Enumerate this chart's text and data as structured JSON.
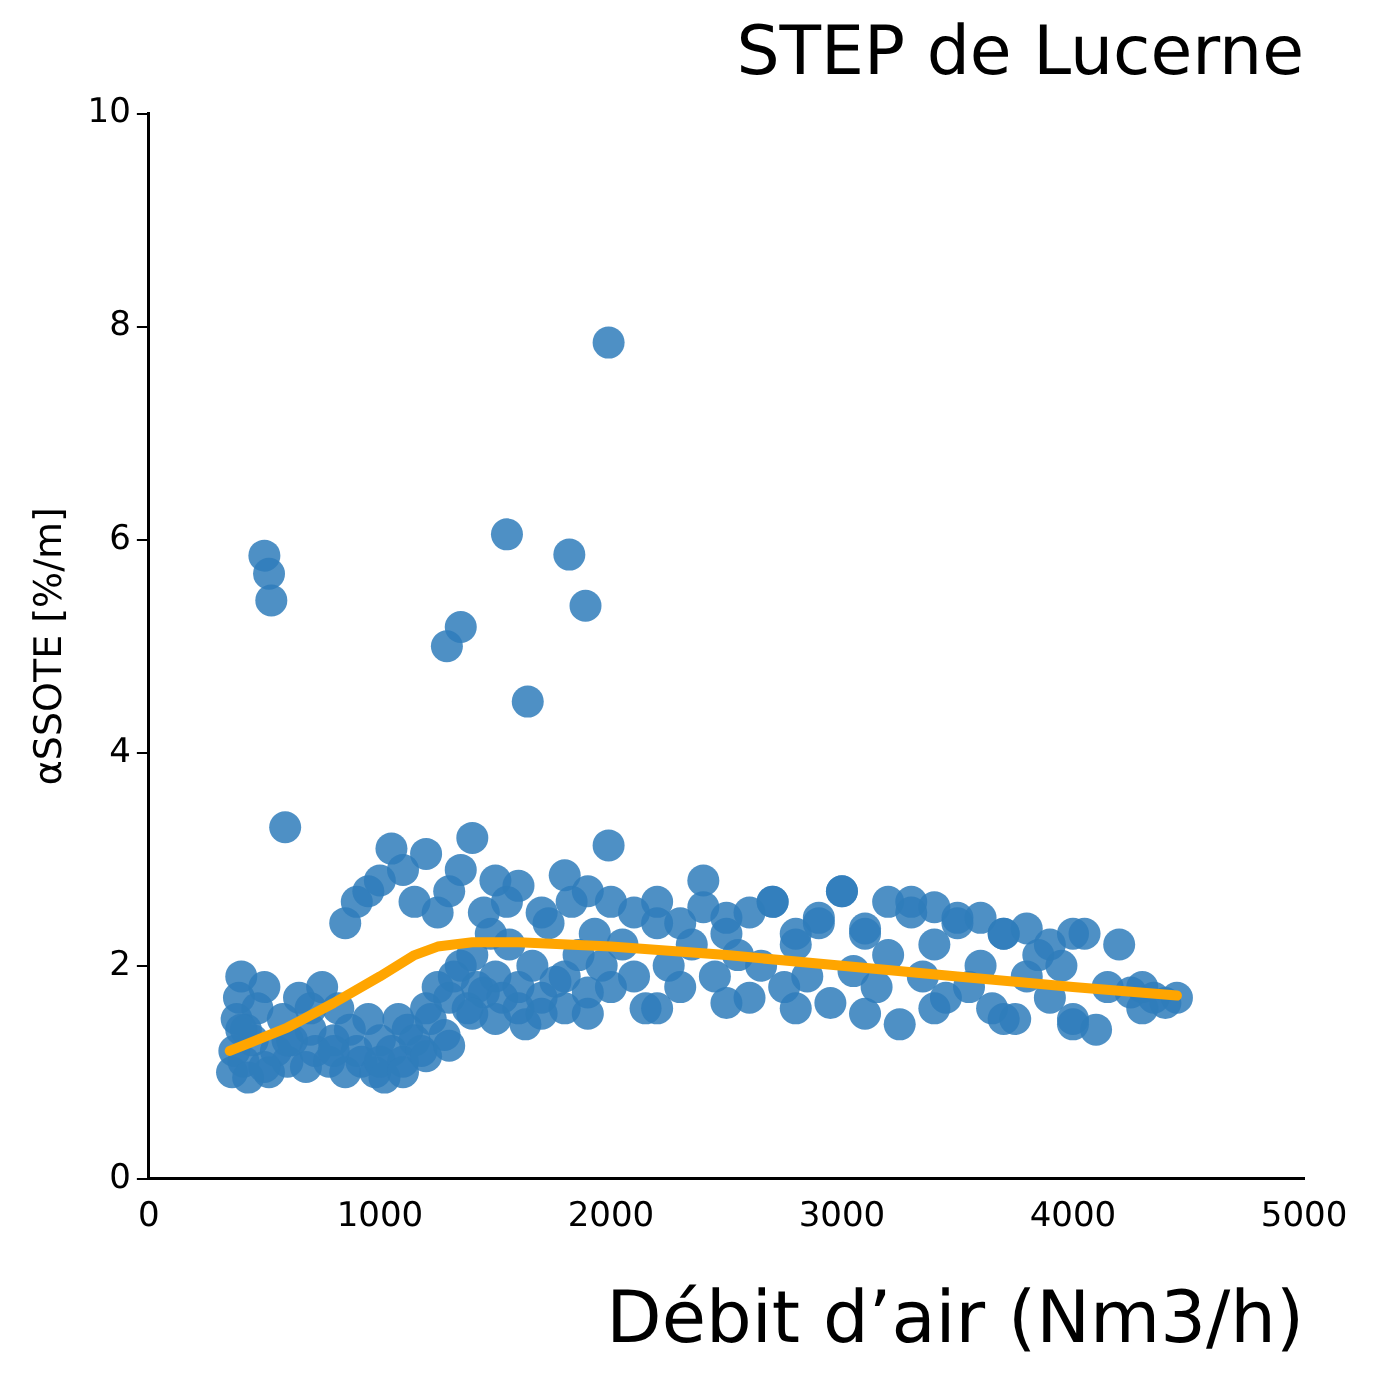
{
  "chart_data": {
    "type": "scatter",
    "title": "STEP de Lucerne",
    "xlabel": "Débit d’air (Nm3/h)",
    "ylabel": "αSSOTE [%/m]",
    "xlim": [
      0,
      5000
    ],
    "xticks": [
      0,
      1000,
      2000,
      3000,
      4000,
      5000
    ],
    "ylim": [
      0,
      10
    ],
    "yticks": [
      0,
      2,
      4,
      6,
      8,
      10
    ],
    "grid": false,
    "legend": false,
    "marker": "circle",
    "series": [
      {
        "color": "#2f7dbb",
        "x": [
          500,
          520,
          530,
          590,
          1290,
          1350,
          1550,
          1640,
          1820,
          1890,
          1990,
          1990,
          360,
          370,
          380,
          390,
          400,
          410,
          420,
          430,
          450,
          470,
          500,
          520,
          550,
          580,
          600,
          620,
          650,
          680,
          700,
          720,
          750,
          780,
          800,
          820,
          850,
          870,
          900,
          920,
          950,
          980,
          1000,
          1020,
          1050,
          1080,
          1100,
          1120,
          1150,
          1180,
          1200,
          1220,
          1250,
          1280,
          1300,
          1320,
          1350,
          1380,
          1400,
          1420,
          1450,
          1480,
          1500,
          1530,
          1560,
          1600,
          1630,
          1660,
          1700,
          1730,
          1760,
          1800,
          1830,
          1860,
          1900,
          1930,
          1960,
          2000,
          2050,
          2100,
          2150,
          2200,
          2250,
          2300,
          2350,
          2400,
          2450,
          2500,
          2550,
          2600,
          2650,
          2700,
          2750,
          2800,
          2850,
          2900,
          2950,
          3000,
          3050,
          3100,
          3150,
          3200,
          3250,
          3300,
          3350,
          3400,
          3450,
          3500,
          3550,
          3600,
          3650,
          3700,
          3750,
          3800,
          3850,
          3900,
          3950,
          4000,
          4050,
          4100,
          4150,
          4200,
          4250,
          4300,
          4350,
          4400,
          4450,
          850,
          900,
          950,
          1000,
          1050,
          1100,
          1150,
          1200,
          1250,
          1300,
          1350,
          1400,
          1450,
          1500,
          1550,
          1600,
          1700,
          1800,
          1900,
          2000,
          2100,
          2200,
          2300,
          2400,
          2500,
          2600,
          2700,
          2800,
          2900,
          3000,
          3100,
          3200,
          3300,
          3400,
          3500,
          3600,
          3700,
          3800,
          3900,
          4000,
          400,
          500,
          600,
          700,
          800,
          1000,
          1100,
          1200,
          1300,
          1400,
          1500,
          1600,
          1700,
          1800,
          1900,
          2200,
          2500,
          2800,
          3100,
          3400,
          3700,
          4000,
          4300
        ],
        "values": [
          5.85,
          5.68,
          5.43,
          3.3,
          5.0,
          5.18,
          6.05,
          4.48,
          5.86,
          5.38,
          7.85,
          3.13,
          1.0,
          1.2,
          1.5,
          1.7,
          1.9,
          1.1,
          1.4,
          0.95,
          1.3,
          1.6,
          1.8,
          1.0,
          1.2,
          1.5,
          1.1,
          1.3,
          1.7,
          1.05,
          1.4,
          1.2,
          1.8,
          1.1,
          1.3,
          1.6,
          1.0,
          1.4,
          1.2,
          1.1,
          1.5,
          1.0,
          1.3,
          0.95,
          1.2,
          1.5,
          1.1,
          1.4,
          1.3,
          1.2,
          1.6,
          1.5,
          1.8,
          1.35,
          1.7,
          1.9,
          2.0,
          1.6,
          2.1,
          1.8,
          1.75,
          2.3,
          1.9,
          1.7,
          2.2,
          1.8,
          1.45,
          2.0,
          1.7,
          2.4,
          1.85,
          1.9,
          2.6,
          2.1,
          1.75,
          2.3,
          2.0,
          1.8,
          2.2,
          1.9,
          1.6,
          2.4,
          2.0,
          1.8,
          2.2,
          2.8,
          1.9,
          2.3,
          2.1,
          1.7,
          2.0,
          2.6,
          1.8,
          2.2,
          1.9,
          2.4,
          1.65,
          2.7,
          1.95,
          2.3,
          1.8,
          2.1,
          1.45,
          2.6,
          1.9,
          2.2,
          1.7,
          2.45,
          1.8,
          2.0,
          1.6,
          2.3,
          1.5,
          1.9,
          2.1,
          1.7,
          2.0,
          1.5,
          2.3,
          1.4,
          1.8,
          2.2,
          1.75,
          1.8,
          1.7,
          1.65,
          1.7,
          2.4,
          2.6,
          2.7,
          2.8,
          3.1,
          2.9,
          2.6,
          3.05,
          2.5,
          2.7,
          2.9,
          3.2,
          2.5,
          2.8,
          2.6,
          2.75,
          2.5,
          2.85,
          2.7,
          2.6,
          2.5,
          2.6,
          2.4,
          2.55,
          2.45,
          2.5,
          2.6,
          2.3,
          2.45,
          2.7,
          2.35,
          2.6,
          2.5,
          2.55,
          2.4,
          2.45,
          2.3,
          2.35,
          2.2,
          2.3,
          1.4,
          1.05,
          1.3,
          1.6,
          1.2,
          1.1,
          1.0,
          1.15,
          1.25,
          1.55,
          1.5,
          1.6,
          1.55,
          1.6,
          1.55,
          1.6,
          1.65,
          1.6,
          1.55,
          1.6,
          1.5,
          1.45,
          1.6
        ]
      },
      {
        "type": "line",
        "color": "#ffa500",
        "marker": "none",
        "x": [
          350,
          600,
          800,
          1000,
          1150,
          1250,
          1400,
          1600,
          2000,
          2500,
          3000,
          3500,
          4000,
          4450
        ],
        "values": [
          1.2,
          1.42,
          1.65,
          1.9,
          2.1,
          2.18,
          2.22,
          2.22,
          2.18,
          2.1,
          2.0,
          1.9,
          1.8,
          1.72
        ]
      }
    ]
  }
}
